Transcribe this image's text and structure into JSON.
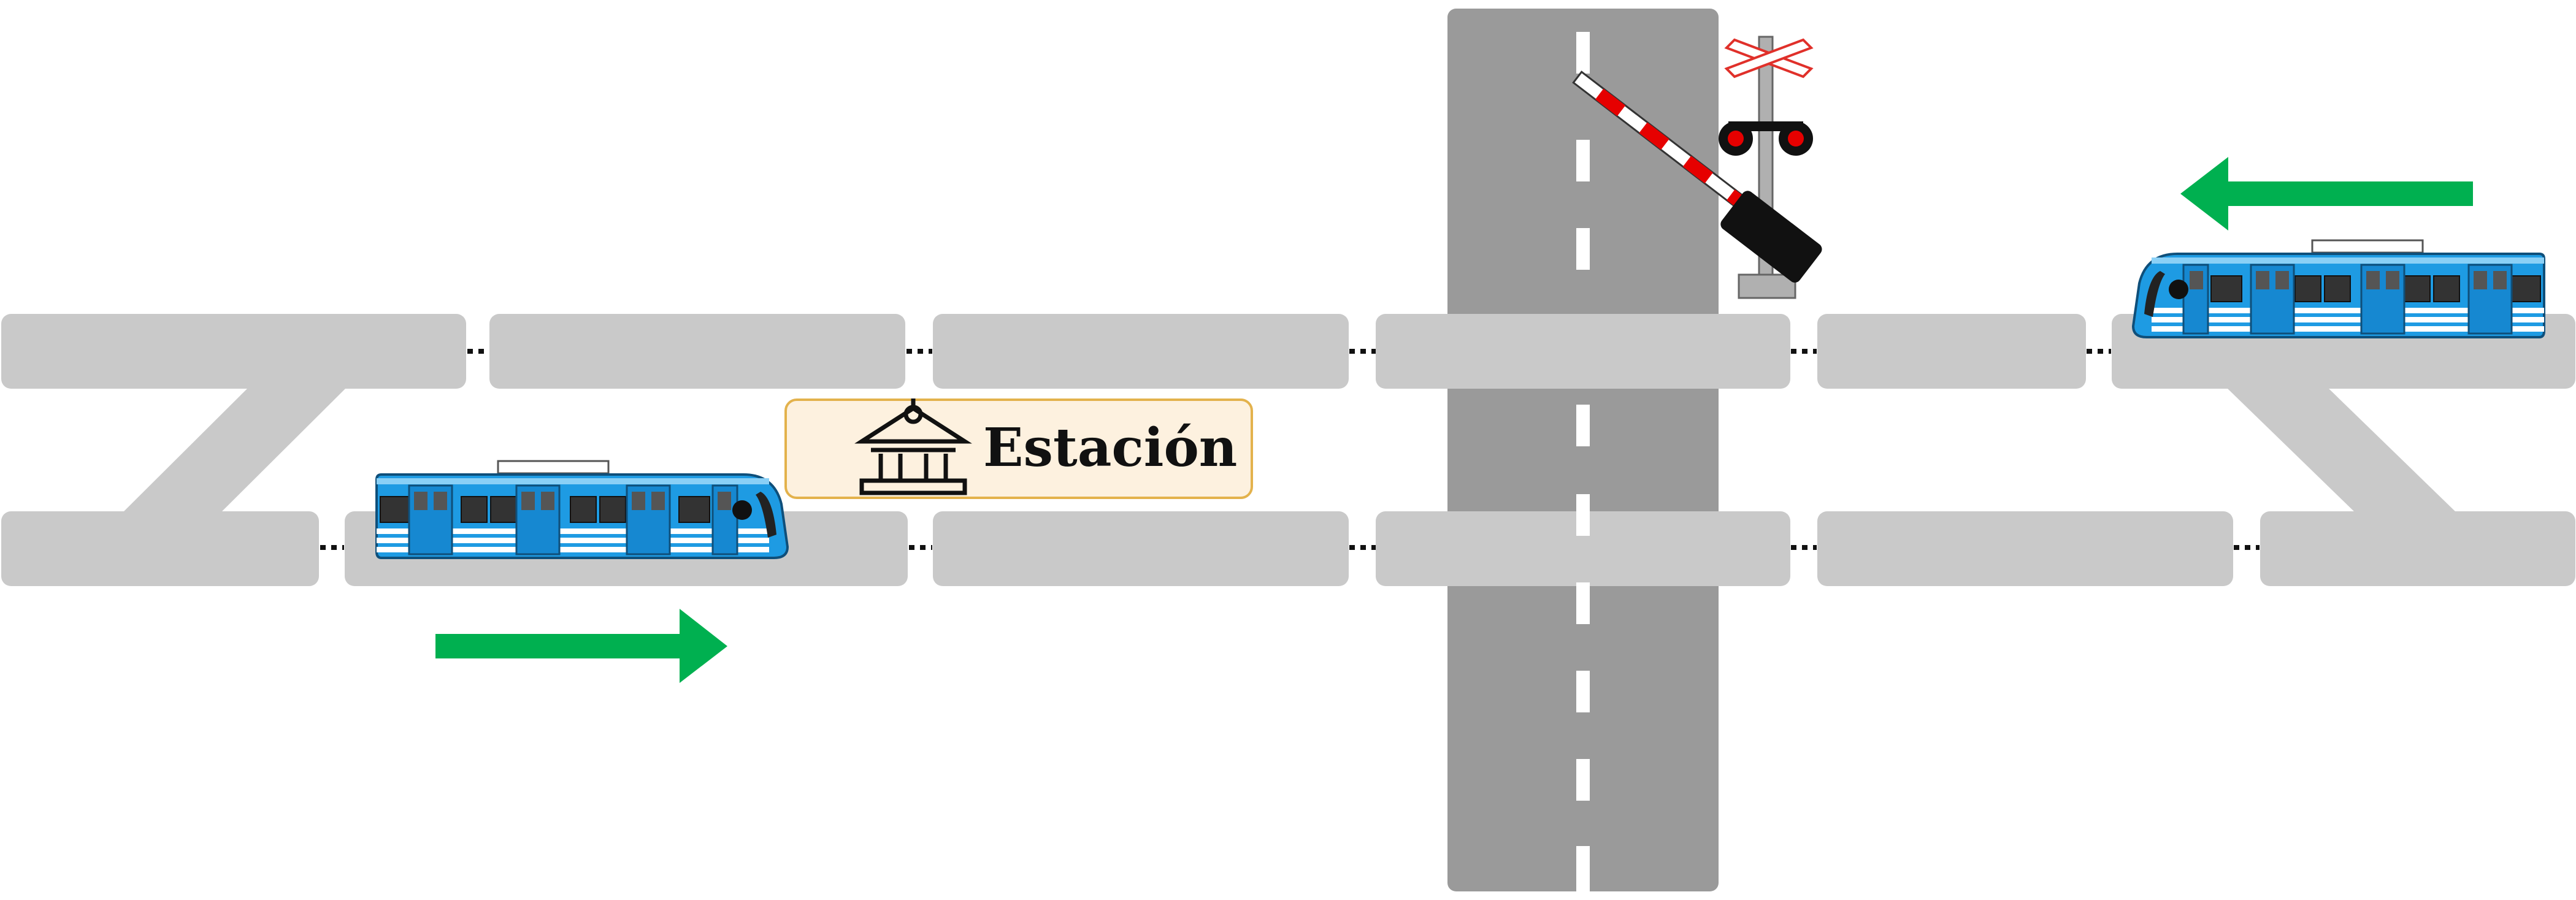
{
  "station": {
    "label": "Estación"
  },
  "trains": [
    {
      "id": "train-eastbound",
      "direction": "right"
    },
    {
      "id": "train-westbound",
      "direction": "left"
    }
  ],
  "crossing": {
    "barrier_state": "lowered",
    "signal_lights": "red"
  },
  "colors": {
    "track": "#c9c9c9",
    "road": "#9a9a9a",
    "arrow": "#00b050",
    "train_body": "#1e9be3",
    "light": "#e60000",
    "station_fill": "#fdf1df",
    "station_border": "#e3b24c"
  }
}
